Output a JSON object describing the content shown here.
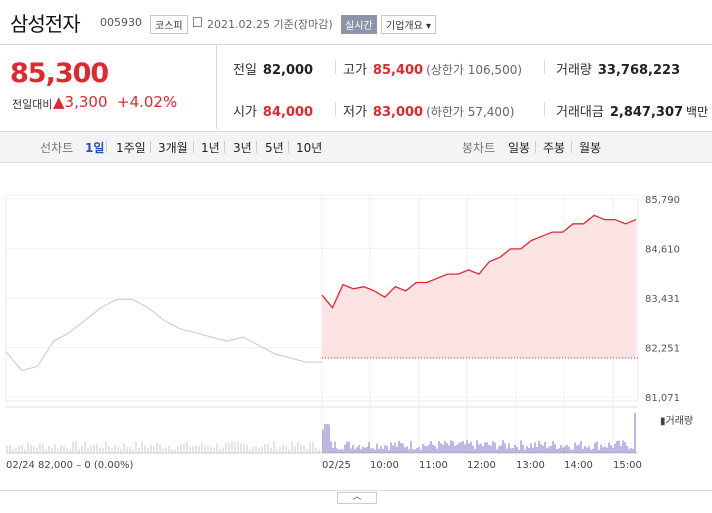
{
  "header": {
    "name": "삼성전자",
    "code": "005930",
    "market": "코스피",
    "date": "2021.02.25 기준(장마감)",
    "realtime": "실시간",
    "company_info": "기업개요"
  },
  "quote": {
    "price": "85,300",
    "change_label": "전일대비",
    "change": "3,300",
    "change_pct": "+4.02%",
    "prev_label": "전일",
    "prev": "82,000",
    "high_label": "고가",
    "high": "85,400",
    "upper_limit": "(상한가 106,500)",
    "volume_label": "거래량",
    "volume": "33,768,223",
    "open_label": "시가",
    "open": "84,000",
    "low_label": "저가",
    "low": "83,000",
    "lower_limit": "(하한가 57,400)",
    "amount_label": "거래대금",
    "amount": "2,847,307",
    "amount_unit": "백만"
  },
  "tabs": {
    "line_label": "선차트",
    "line": [
      "1일",
      "1주일",
      "3개월",
      "1년",
      "3년",
      "5년",
      "10년"
    ],
    "candle_label": "봉차트",
    "candle": [
      "일봉",
      "주봉",
      "월봉"
    ]
  },
  "colors": {
    "up": "#e0282e",
    "fill": "#fde3e4",
    "prev": "#cfcfcf",
    "volume": "#7b6fc8"
  },
  "chart_data": {
    "type": "line",
    "y_ticks": [
      "85,790",
      "84,610",
      "83,431",
      "82,251",
      "81,071"
    ],
    "ylim": [
      81071,
      85790
    ],
    "x_ticks": [
      "02/24",
      "02/25",
      "10:00",
      "11:00",
      "12:00",
      "13:00",
      "14:00",
      "15:00"
    ],
    "prev_day_label": "02/24",
    "prev_day_summary": "82,000 – 0 (0.00%)",
    "volume_label": "거래량",
    "series": [
      {
        "name": "02/24",
        "x": [
          0,
          3,
          6,
          9,
          12,
          15,
          18,
          21,
          24,
          27,
          30,
          33,
          36,
          39,
          42,
          45,
          48,
          51,
          54,
          57,
          60
        ],
        "values": [
          82150,
          81700,
          81800,
          82400,
          82600,
          82900,
          83200,
          83400,
          83400,
          83200,
          82900,
          82700,
          82600,
          82500,
          82400,
          82500,
          82300,
          82100,
          82000,
          81900,
          81900
        ]
      },
      {
        "name": "02/25",
        "x": [
          0,
          2,
          4,
          6,
          8,
          10,
          12,
          14,
          16,
          18,
          20,
          22,
          24,
          26,
          28,
          30,
          32,
          34,
          36,
          38,
          40,
          42,
          44,
          46,
          48,
          50,
          52,
          54,
          56,
          58,
          60
        ],
        "values": [
          83500,
          83200,
          83750,
          83650,
          83700,
          83600,
          83450,
          83700,
          83600,
          83800,
          83800,
          83900,
          84000,
          84000,
          84100,
          84000,
          84300,
          84400,
          84600,
          84600,
          84800,
          84900,
          85000,
          85000,
          85200,
          85200,
          85400,
          85300,
          85300,
          85200,
          85300
        ]
      }
    ],
    "prev_close": 82000
  }
}
